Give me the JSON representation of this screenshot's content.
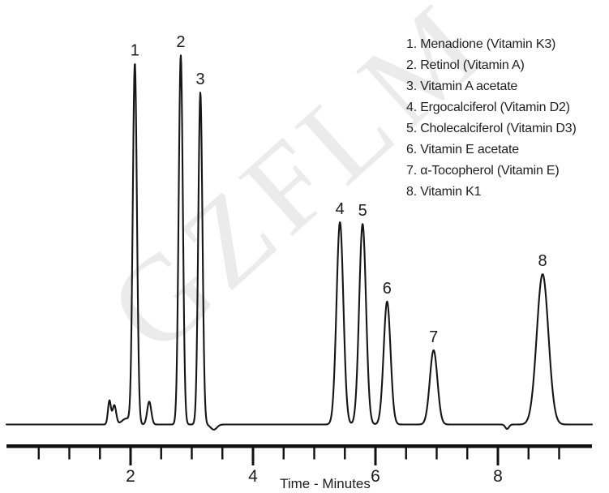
{
  "figure": {
    "background": "#ffffff",
    "ink_color": "#1c1c1c",
    "watermark": {
      "text": "GZFLM",
      "color": "#ebebeb"
    }
  },
  "chart_data": {
    "type": "line",
    "kind": "HPLC chromatogram of fat-soluble vitamins",
    "title": "",
    "xlabel": "Time - Minutes",
    "ylabel": "",
    "xlim": [
      0,
      9.5
    ],
    "x_major_ticks": [
      2,
      4,
      6,
      8
    ],
    "x_minor_tick_interval": 0.5,
    "x_minor_tick_start": 0.5,
    "x_minor_tick_end": 9.0,
    "grid": false,
    "legend_position": "top-right",
    "y_units": "relative detector response (tallest peak = 100)",
    "peaks": [
      {
        "number": 1,
        "name": "Menadione (Vitamin K3)",
        "rt_min": 2.07,
        "height_rel": 97.7,
        "sigma_min": 0.034
      },
      {
        "number": 2,
        "name": "Retinol (Vitamin A)",
        "rt_min": 2.82,
        "height_rel": 100.0,
        "sigma_min": 0.034
      },
      {
        "number": 3,
        "name": "Vitamin A acetate",
        "rt_min": 3.14,
        "height_rel": 89.9,
        "sigma_min": 0.034
      },
      {
        "number": 4,
        "name": "Ergocalciferol (Vitamin D2)",
        "rt_min": 5.42,
        "height_rel": 54.8,
        "sigma_min": 0.056
      },
      {
        "number": 5,
        "name": "Cholecalciferol (Vitamin D3)",
        "rt_min": 5.79,
        "height_rel": 54.3,
        "sigma_min": 0.056
      },
      {
        "number": 6,
        "name": "Vitamin E acetate",
        "rt_min": 6.19,
        "height_rel": 33.3,
        "sigma_min": 0.056
      },
      {
        "number": 7,
        "name": "α-Tocopherol (Vitamin E)",
        "rt_min": 6.95,
        "height_rel": 20.1,
        "sigma_min": 0.062
      },
      {
        "number": 8,
        "name": "Vitamin K1",
        "rt_min": 8.73,
        "height_rel": 40.7,
        "sigma_min": 0.095
      }
    ],
    "baseline_disturbances": [
      {
        "rt_min": 1.655,
        "height_rel": 6.4,
        "sigma_min": 0.024
      },
      {
        "rt_min": 1.735,
        "height_rel": 5.2,
        "sigma_min": 0.03
      },
      {
        "rt_min": 1.93,
        "height_rel": 1.6,
        "sigma_min": 0.07
      },
      {
        "rt_min": 2.305,
        "height_rel": 6.2,
        "sigma_min": 0.033
      },
      {
        "rt_min": 3.36,
        "height_rel": -1.4,
        "sigma_min": 0.05
      },
      {
        "rt_min": 8.15,
        "height_rel": -1.2,
        "sigma_min": 0.03
      }
    ]
  }
}
